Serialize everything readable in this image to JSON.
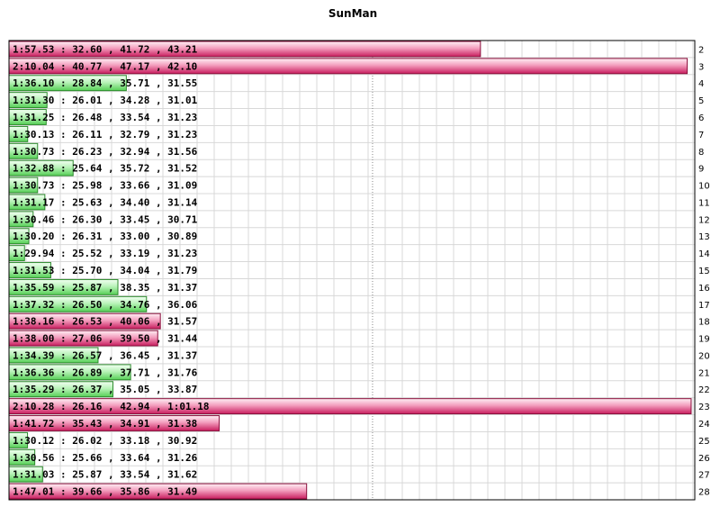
{
  "chart_data": {
    "type": "bar",
    "orientation": "horizontal",
    "title": "SunMan",
    "xlabel": "",
    "ylabel": "",
    "grid": true,
    "xlim": [
      89.0,
      130.5
    ],
    "reference_line": 111.0,
    "colors": {
      "normal": "#33bb33",
      "slow": "#cc1155"
    },
    "slow_threshold": 97.5,
    "laps": [
      {
        "lap": "2",
        "label": "1:57.53 : 32.60 , 41.72 , 43.21",
        "value": 117.53
      },
      {
        "lap": "3",
        "label": "2:10.04 : 40.77 , 47.17 , 42.10",
        "value": 130.04
      },
      {
        "lap": "4",
        "label": "1:36.10 : 28.84 , 35.71 , 31.55",
        "value": 96.1
      },
      {
        "lap": "5",
        "label": "1:31.30 : 26.01 , 34.28 , 31.01",
        "value": 91.3
      },
      {
        "lap": "6",
        "label": "1:31.25 : 26.48 , 33.54 , 31.23",
        "value": 91.25
      },
      {
        "lap": "7",
        "label": "1:30.13 : 26.11 , 32.79 , 31.23",
        "value": 90.13
      },
      {
        "lap": "8",
        "label": "1:30.73 : 26.23 , 32.94 , 31.56",
        "value": 90.73
      },
      {
        "lap": "9",
        "label": "1:32.88 : 25.64 , 35.72 , 31.52",
        "value": 92.88
      },
      {
        "lap": "10",
        "label": "1:30.73 : 25.98 , 33.66 , 31.09",
        "value": 90.73
      },
      {
        "lap": "11",
        "label": "1:31.17 : 25.63 , 34.40 , 31.14",
        "value": 91.17
      },
      {
        "lap": "12",
        "label": "1:30.46 : 26.30 , 33.45 , 30.71",
        "value": 90.46
      },
      {
        "lap": "13",
        "label": "1:30.20 : 26.31 , 33.00 , 30.89",
        "value": 90.2
      },
      {
        "lap": "14",
        "label": "1:29.94 : 25.52 , 33.19 , 31.23",
        "value": 89.94
      },
      {
        "lap": "15",
        "label": "1:31.53 : 25.70 , 34.04 , 31.79",
        "value": 91.53
      },
      {
        "lap": "16",
        "label": "1:35.59 : 25.87 , 38.35 , 31.37",
        "value": 95.59
      },
      {
        "lap": "17",
        "label": "1:37.32 : 26.50 , 34.76 , 36.06",
        "value": 97.32
      },
      {
        "lap": "18",
        "label": "1:38.16 : 26.53 , 40.06 , 31.57",
        "value": 98.16
      },
      {
        "lap": "19",
        "label": "1:38.00 : 27.06 , 39.50 , 31.44",
        "value": 98.0
      },
      {
        "lap": "20",
        "label": "1:34.39 : 26.57 , 36.45 , 31.37",
        "value": 94.39
      },
      {
        "lap": "21",
        "label": "1:36.36 : 26.89 , 37.71 , 31.76",
        "value": 96.36
      },
      {
        "lap": "22",
        "label": "1:35.29 : 26.37 , 35.05 , 33.87",
        "value": 95.29
      },
      {
        "lap": "23",
        "label": "2:10.28 : 26.16 , 42.94 , 1:01.18",
        "value": 130.28
      },
      {
        "lap": "24",
        "label": "1:41.72 : 35.43 , 34.91 , 31.38",
        "value": 101.72
      },
      {
        "lap": "25",
        "label": "1:30.12 : 26.02 , 33.18 , 30.92",
        "value": 90.12
      },
      {
        "lap": "26",
        "label": "1:30.56 : 25.66 , 33.64 , 31.26",
        "value": 90.56
      },
      {
        "lap": "27",
        "label": "1:31.03 : 25.87 , 33.54 , 31.62",
        "value": 91.03
      },
      {
        "lap": "28",
        "label": "1:47.01 : 39.66 , 35.86 , 31.49",
        "value": 107.01
      }
    ]
  }
}
